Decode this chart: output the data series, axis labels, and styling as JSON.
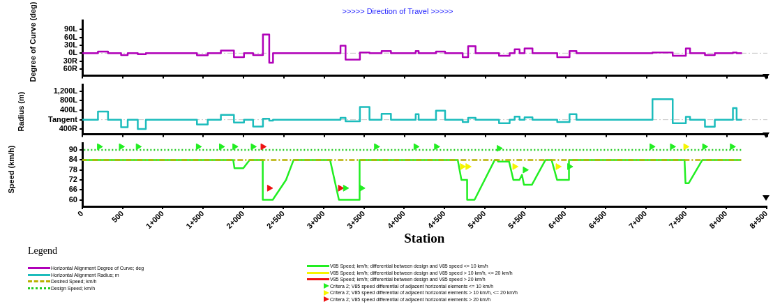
{
  "chart_data": [
    {
      "type": "step",
      "title": ">>>>> Direction of Travel >>>>>",
      "ylabel": "Degree of Curve (deg)",
      "legend": "bottom",
      "legend_title": "Legend",
      "tick_labels": "y",
      "xlim": [
        0,
        8500
      ],
      "xticks": [
        0,
        500,
        1000,
        1500,
        2000,
        2500,
        3000,
        3500,
        4000,
        4500,
        5000,
        5500,
        6000,
        6500,
        7000,
        7500,
        8000,
        8500
      ],
      "ylim": [
        -85,
        125
      ],
      "yticks": [
        {
          "value": 90,
          "label": "90L"
        },
        {
          "value": 60,
          "label": "60L"
        },
        {
          "value": 30,
          "label": "30L"
        },
        {
          "value": 0,
          "label": "0L"
        },
        {
          "value": -30,
          "label": "30R"
        },
        {
          "value": -60,
          "label": "60R"
        }
      ],
      "ref_lines": [
        {
          "axis": "y",
          "value": 0,
          "color": "#c8c8c8",
          "line_style": "dashed"
        }
      ],
      "series": [
        {
          "name": "Horizontal Alignment Degree of Curve; deg",
          "color": "#b000b8",
          "x": [
            0,
            194,
            319,
            481,
            563,
            688,
            788,
            1422,
            1556,
            1719,
            1881,
            2006,
            2119,
            2241,
            2319,
            2366,
            3203,
            3266,
            3444,
            3563,
            3713,
            3829,
            4136,
            4173,
            4388,
            4501,
            4719,
            4787,
            4879,
            5170,
            5302,
            5364,
            5425,
            5487,
            5585,
            5892,
            6045,
            6131,
            7074,
            7325,
            7488,
            7540,
            7725,
            7847,
            8072,
            8118,
            8185
          ],
          "values": [
            0,
            6,
            0,
            -7,
            0,
            -4,
            0,
            -8,
            0,
            10,
            -15,
            0,
            -7,
            71,
            -36,
            0,
            29,
            -24,
            3,
            0,
            8,
            0,
            8,
            0,
            6,
            0,
            -15,
            27,
            0,
            -10,
            0,
            15,
            0,
            18,
            0,
            -15,
            8,
            0,
            3,
            -10,
            18,
            0,
            -7,
            0,
            3,
            0,
            0
          ]
        }
      ]
    },
    {
      "type": "step",
      "ylabel": "Radius (m)",
      "legend": "bottom",
      "tick_labels": "y",
      "xlim": [
        0,
        8500
      ],
      "xticks": [
        0,
        500,
        1000,
        1500,
        2000,
        2500,
        3000,
        3500,
        4000,
        4500,
        5000,
        5500,
        6000,
        6500,
        7000,
        7500,
        8000,
        8500
      ],
      "ylim": [
        -610,
        1470
      ],
      "yticks": [
        {
          "value": 1200,
          "label": "1,200L"
        },
        {
          "value": 800,
          "label": "800L"
        },
        {
          "value": 400,
          "label": "400L"
        },
        {
          "value": 0,
          "label": "Tangent"
        },
        {
          "value": -400,
          "label": "400R"
        }
      ],
      "ref_lines": [
        {
          "axis": "y",
          "value": 0,
          "color": "#c8c8c8",
          "line_style": "dashed"
        }
      ],
      "series": [
        {
          "name": "Horizontal Alignment Radius; m",
          "color": "#1cbcbc",
          "x": [
            0,
            194,
            319,
            481,
            563,
            688,
            788,
            1422,
            1556,
            1719,
            1881,
            2006,
            2119,
            2241,
            2319,
            2366,
            3203,
            3266,
            3444,
            3563,
            3713,
            3829,
            4136,
            4173,
            4388,
            4501,
            4719,
            4787,
            4879,
            5170,
            5302,
            5364,
            5425,
            5487,
            5585,
            5892,
            6045,
            6131,
            7074,
            7325,
            7488,
            7540,
            7725,
            7847,
            8072,
            8118,
            8185
          ],
          "values": [
            0,
            340,
            0,
            -320,
            0,
            -390,
            0,
            -200,
            0,
            200,
            -120,
            0,
            -290,
            40,
            -40,
            0,
            80,
            -70,
            530,
            0,
            250,
            0,
            230,
            0,
            380,
            0,
            -100,
            80,
            0,
            -150,
            0,
            130,
            0,
            100,
            0,
            -100,
            230,
            0,
            860,
            -150,
            120,
            0,
            -300,
            0,
            490,
            0,
            0
          ]
        }
      ]
    },
    {
      "type": "line",
      "ylabel": "Speed (km/h)",
      "xlabel": "Station",
      "legend": "bottom",
      "xlim": [
        0,
        8500
      ],
      "xticks": [
        0,
        500,
        {
          "value": 1000,
          "label": "1+000"
        },
        {
          "value": 1500,
          "label": "1+500"
        },
        {
          "value": 2000,
          "label": "2+000"
        },
        {
          "value": 2500,
          "label": "2+500"
        },
        {
          "value": 3000,
          "label": "3+000"
        },
        {
          "value": 3500,
          "label": "3+500"
        },
        {
          "value": 4000,
          "label": "4+000"
        },
        {
          "value": 4500,
          "label": "4+500"
        },
        {
          "value": 5000,
          "label": "5+000"
        },
        {
          "value": 5500,
          "label": "5+500"
        },
        {
          "value": 6000,
          "label": "6+000"
        },
        {
          "value": 6500,
          "label": "6+500"
        },
        {
          "value": 7000,
          "label": "7+000"
        },
        {
          "value": 7500,
          "label": "7+500"
        },
        {
          "value": 8000,
          "label": "8+000"
        },
        {
          "value": 8500,
          "label": "8+500"
        }
      ],
      "ylim": [
        56,
        94
      ],
      "yticks": [
        60,
        66,
        72,
        78,
        84,
        90
      ],
      "series": [
        {
          "name": "Desired Speed; km/h",
          "color": "#b8b000",
          "line_style": "dashed",
          "x": [
            0,
            8185
          ],
          "values": [
            84,
            84
          ]
        },
        {
          "name": "Design Speed; km/h",
          "color": "#22cc22",
          "line_style": "dotted",
          "x": [
            0,
            8185
          ],
          "values": [
            90,
            90
          ]
        },
        {
          "name": "V85 Speed; km/h; differential between design and V85 speed <= 10 km/h",
          "color": "#22ee22",
          "line_style": "solid",
          "x": [
            0,
            1875,
            1890,
            2000,
            2078,
            2241,
            2242,
            2366,
            2531,
            2625,
            3078,
            3188,
            3444,
            3445,
            4664,
            4710,
            4780,
            4781,
            4873,
            5124,
            5155,
            5165,
            5302,
            5355,
            5431,
            5462,
            5487,
            5585,
            5754,
            5830,
            5898,
            6045,
            6046,
            7482,
            7494,
            7534,
            7703,
            8185
          ],
          "values": [
            84,
            84,
            79,
            79,
            84,
            84,
            60,
            60,
            72,
            84,
            84,
            60,
            60,
            84,
            84,
            72,
            72,
            60,
            60,
            84,
            84,
            83,
            83,
            72,
            72,
            75,
            69,
            69,
            84,
            84,
            72,
            72,
            84,
            84,
            70,
            70,
            84,
            84
          ]
        },
        {
          "name": "V85 Speed; km/h; differential between design and V85 speed > 10 km/h, <= 20 km/h",
          "color": "#f5f500",
          "line_style": "solid"
        },
        {
          "name": "V85 Speed; km/h; differential between design and V85 speed > 20 km/h",
          "color": "#ee1111",
          "line_style": "solid"
        },
        {
          "name": "Critera 2; V85 speed differential of adjacent horizontal elements <= 10 km/h",
          "type": "scatter",
          "marker": "triangle",
          "color": "#22ee22",
          "x": [
            209,
            481,
            691,
            1438,
            1725,
            1891,
            2119,
            3266,
            3469,
            3651,
            4142,
            4397,
            5176,
            5499,
            6051,
            7074,
            7328,
            7728,
            8072
          ],
          "values": [
            92,
            92,
            92,
            92,
            92,
            92,
            92,
            67,
            67,
            92,
            92,
            92,
            91,
            78,
            80,
            92,
            92,
            92,
            92
          ]
        },
        {
          "name": "Critera 2; V85 speed differential of adjacent horizontal elements > 10 km/h, <= 20 km/h",
          "type": "scatter",
          "marker": "triangle",
          "color": "#f5f500",
          "x": [
            4719,
            4787,
            5370,
            5907,
            7494
          ],
          "values": [
            80,
            80,
            80,
            80,
            92
          ]
        },
        {
          "name": "Critera 2; V85 speed differential of adjacent horizontal elements > 20 km/h",
          "type": "scatter",
          "marker": "triangle",
          "color": "#ee1111",
          "x": [
            2241,
            2322,
            3203
          ],
          "values": [
            92,
            67,
            67
          ]
        }
      ]
    }
  ]
}
